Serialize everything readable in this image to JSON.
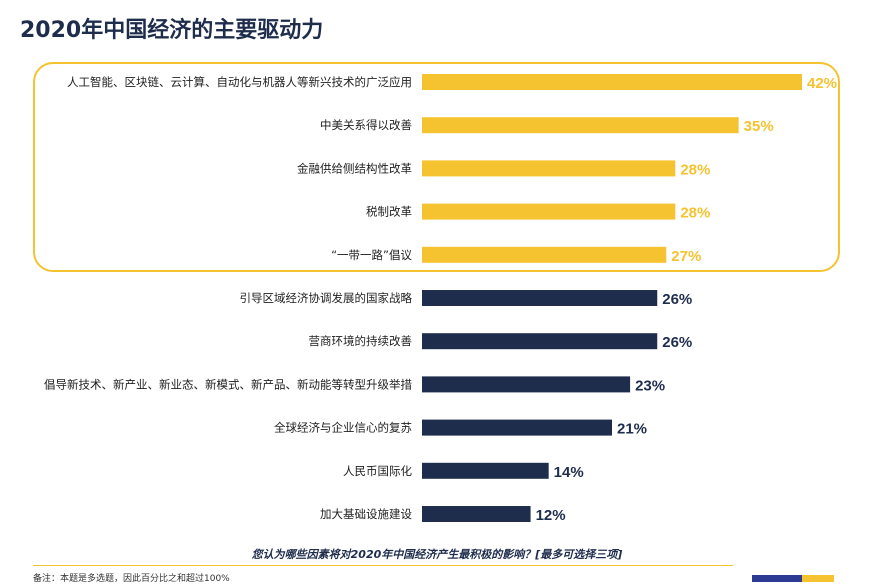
{
  "title": "2020年中国经济的主要驱动力",
  "question": "您认为哪些因素将对2020年中国经济产生最积极的影响？[最多可选择三项]",
  "footnote": "备注：本题是多选题，因此百分比之和超过100%",
  "colors": {
    "highlight": "#f5c330",
    "navy": "#1f2d4d",
    "brand_blue": "#2e3a93"
  },
  "chart_data": {
    "type": "bar",
    "orientation": "horizontal",
    "categories": [
      "人工智能、区块链、云计算、自动化与机器人等新兴技术的广泛应用",
      "中美关系得以改善",
      "金融供给侧结构性改革",
      "税制改革",
      "“一带一路”倡议",
      "引导区域经济协调发展的国家战略",
      "营商环境的持续改善",
      "倡导新技术、新产业、新业态、新模式、新产品、新动能等转型升级举措",
      "全球经济与企业信心的复苏",
      "人民币国际化",
      "加大基础设施建设"
    ],
    "values": [
      42,
      35,
      28,
      28,
      27,
      26,
      26,
      23,
      21,
      14,
      12
    ],
    "value_labels": [
      "42%",
      "35%",
      "28%",
      "28%",
      "27%",
      "26%",
      "26%",
      "23%",
      "21%",
      "14%",
      "12%"
    ],
    "highlighted": [
      true,
      true,
      true,
      true,
      true,
      false,
      false,
      false,
      false,
      false,
      false
    ],
    "xlim": [
      0,
      42
    ],
    "grid": false
  }
}
